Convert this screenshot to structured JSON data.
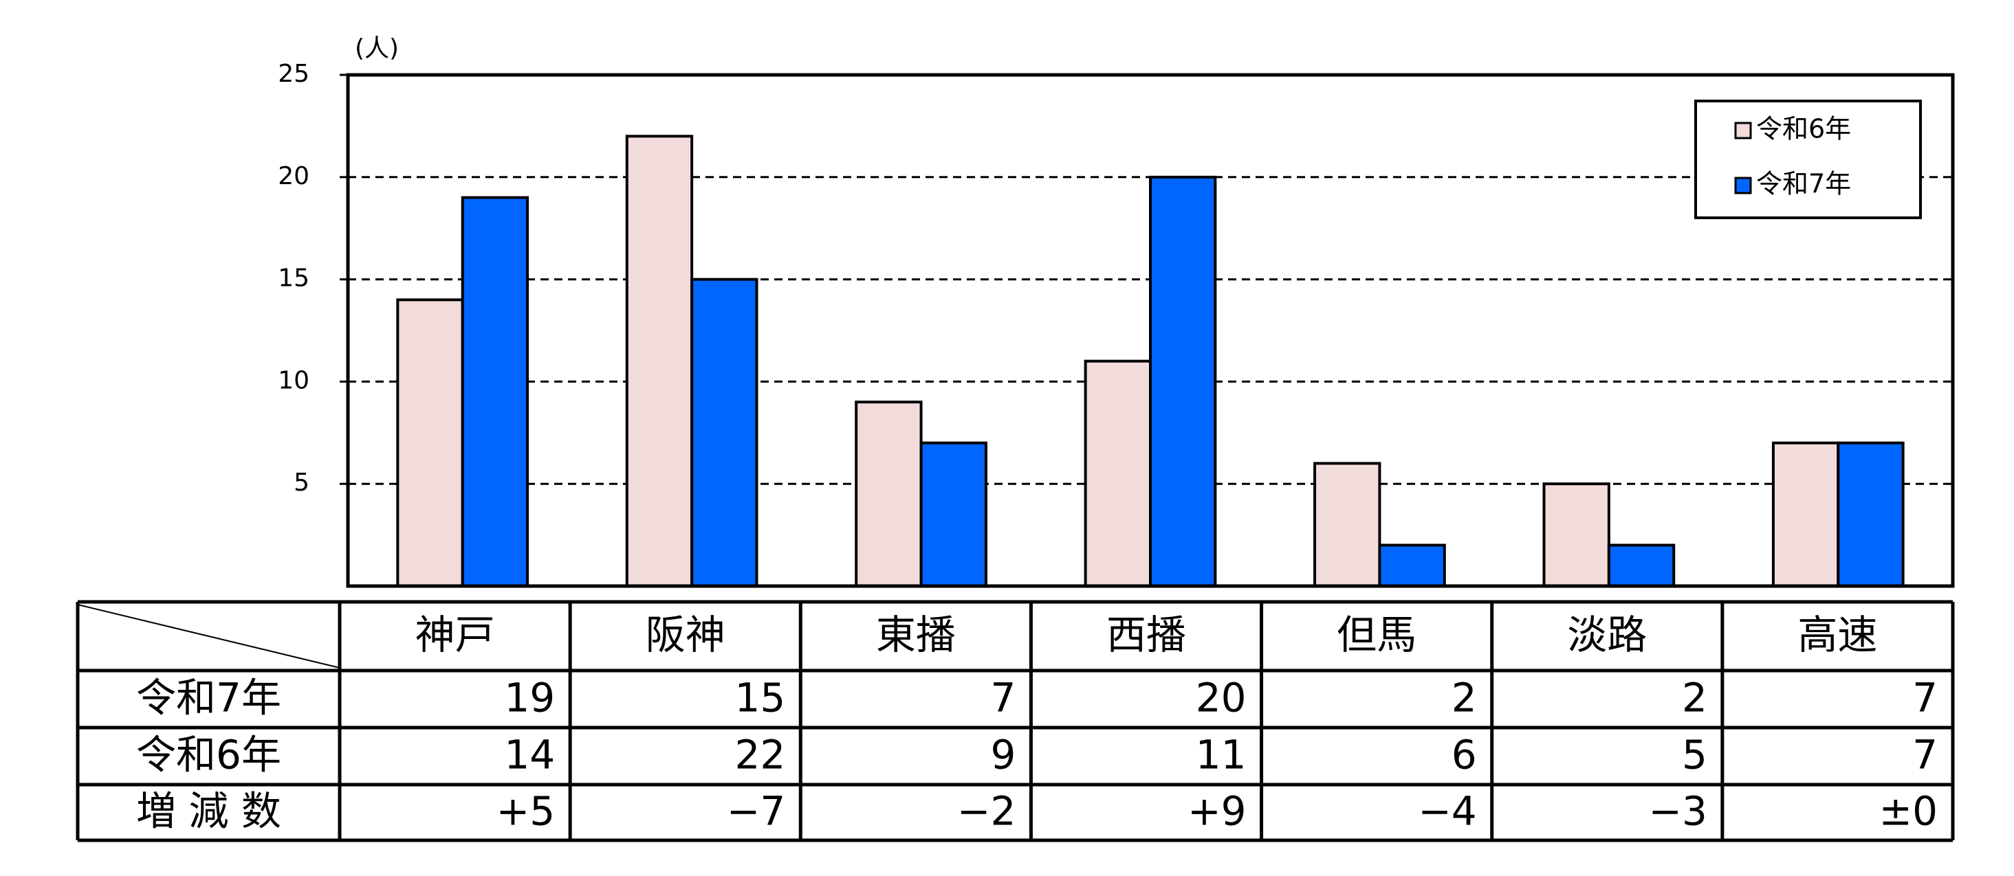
{
  "chart_data": {
    "type": "bar",
    "unit_label": "(人)",
    "categories": [
      "神戸",
      "阪神",
      "東播",
      "西播",
      "但馬",
      "淡路",
      "高速"
    ],
    "series": [
      {
        "name": "令和6年",
        "color": "#f2dcdb",
        "values": [
          14,
          22,
          9,
          11,
          6,
          5,
          7
        ]
      },
      {
        "name": "令和7年",
        "color": "#0066ff",
        "values": [
          19,
          15,
          7,
          20,
          2,
          2,
          7
        ]
      }
    ],
    "ylim": [
      0,
      25
    ],
    "yticks": [
      5,
      10,
      15,
      20,
      25
    ],
    "grid": true,
    "legend": "top-right",
    "change_row": {
      "label": "増 減 数",
      "values": [
        "+5",
        "−7",
        "−2",
        "+9",
        "−4",
        "−3",
        "±0"
      ]
    }
  }
}
